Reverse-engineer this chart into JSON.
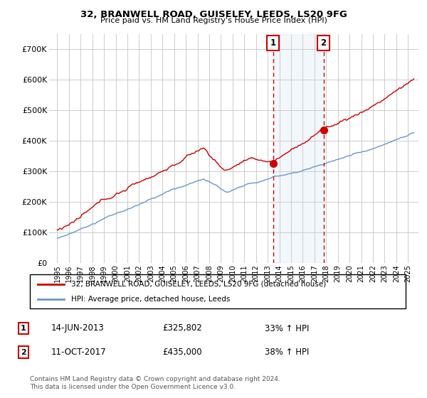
{
  "title": "32, BRANWELL ROAD, GUISELEY, LEEDS, LS20 9FG",
  "subtitle": "Price paid vs. HM Land Registry's House Price Index (HPI)",
  "sale1_date": "14-JUN-2013",
  "sale1_price": 325802,
  "sale1_price_str": "£325,802",
  "sale1_pct": "33% ↑ HPI",
  "sale2_date": "11-OCT-2017",
  "sale2_price": 435000,
  "sale2_price_str": "£435,000",
  "sale2_pct": "38% ↑ HPI",
  "legend_line1": "32, BRANWELL ROAD, GUISELEY, LEEDS, LS20 9FG (detached house)",
  "legend_line2": "HPI: Average price, detached house, Leeds",
  "footer": "Contains HM Land Registry data © Crown copyright and database right 2024.\nThis data is licensed under the Open Government Licence v3.0.",
  "red_color": "#cc0000",
  "blue_color": "#6699cc",
  "shade_color": "#cce0f5",
  "sale1_x": 2013.45,
  "sale2_x": 2017.78,
  "ylim": [
    0,
    750000
  ],
  "yticks": [
    0,
    100000,
    200000,
    300000,
    400000,
    500000,
    600000,
    700000
  ],
  "ytick_labels": [
    "£0",
    "£100K",
    "£200K",
    "£300K",
    "£400K",
    "£500K",
    "£600K",
    "£700K"
  ],
  "xstart": 1995,
  "xend": 2025
}
